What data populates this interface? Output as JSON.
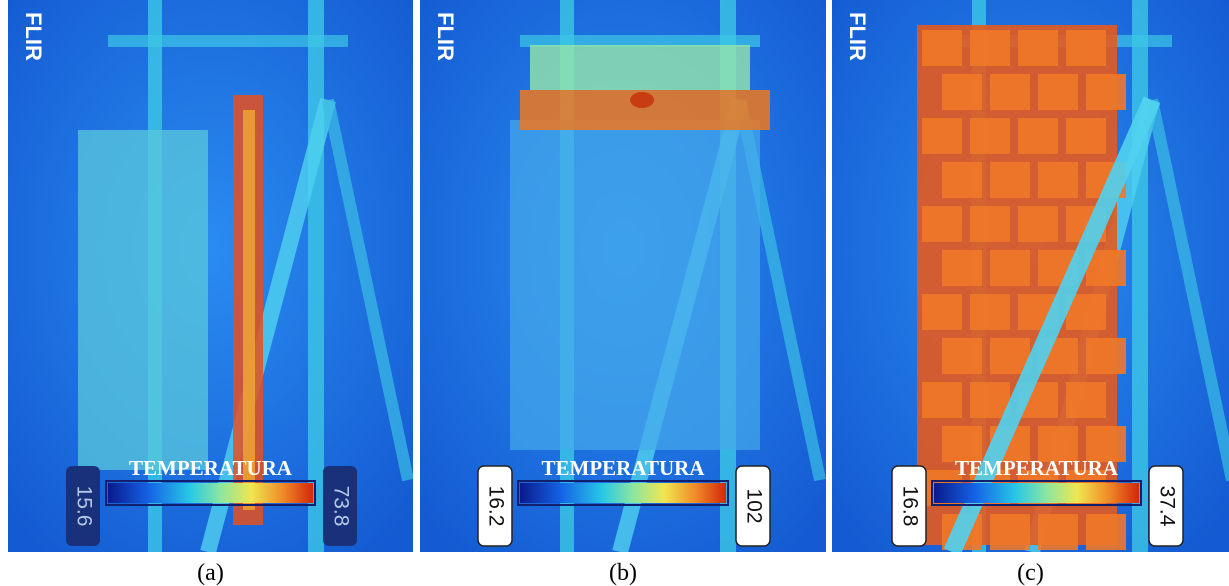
{
  "panels": [
    {
      "logo": "FLIR",
      "scale_title": "TEMPERATURA",
      "min": 15.6,
      "max": 73.8,
      "caption": "(a)"
    },
    {
      "logo": "FLIR",
      "scale_title": "TEMPERATURA",
      "min": 16.2,
      "max": 102,
      "caption": "(b)"
    },
    {
      "logo": "FLIR",
      "scale_title": "TEMPERATURA",
      "min": 16.8,
      "max": 37.4,
      "caption": "(c)"
    }
  ]
}
